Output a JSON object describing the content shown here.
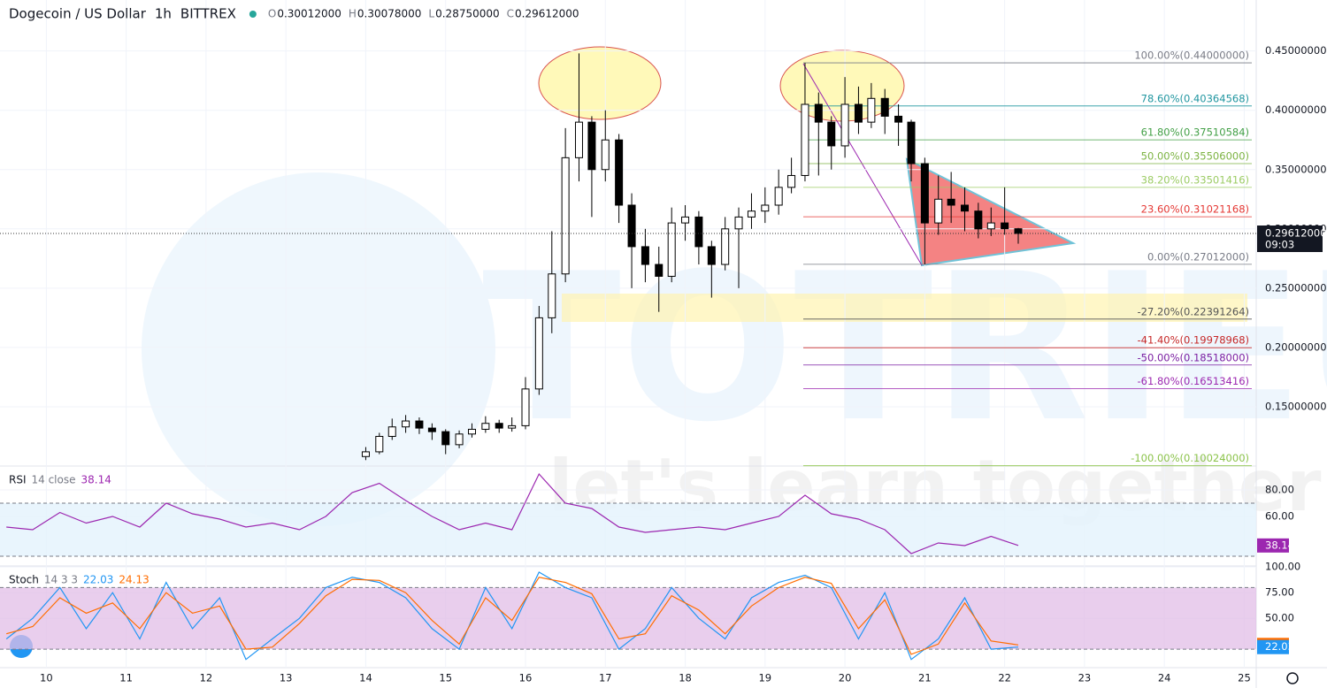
{
  "header": {
    "exchange": "BITTREX",
    "ohlc": [
      {
        "key": "O",
        "value": 0.30012,
        "label": "0.30012000"
      },
      {
        "key": "H",
        "value": 0.30078,
        "label": "0.30078000"
      },
      {
        "key": "L",
        "value": 0.2875,
        "label": "0.28750000"
      },
      {
        "key": "C",
        "value": 0.29612,
        "label": "0.29612000"
      }
    ]
  },
  "watermark": {
    "brand": "TOTRIEU",
    "slogan": "let's learn together"
  },
  "chart_data": [
    {
      "type": "candlestick",
      "title": "Dogecoin / US Dollar",
      "interval": "1h",
      "countdown": "09:03",
      "grid": true,
      "xlim": [
        9.42,
        25.15
      ],
      "xticks": [
        10,
        11,
        12,
        13,
        14,
        15,
        16,
        17,
        18,
        19,
        20,
        21,
        22,
        23,
        24,
        25
      ],
      "ylim": [
        0.1,
        0.493
      ],
      "yticks": [
        {
          "value": 0.45,
          "label": "0.45000000"
        },
        {
          "value": 0.4,
          "label": "0.40000000"
        },
        {
          "value": 0.35,
          "label": "0.35000000"
        },
        {
          "value": 0.3,
          "label": "0.30000000"
        },
        {
          "value": 0.25,
          "label": "0.25000000"
        },
        {
          "value": 0.2,
          "label": "0.20000000"
        },
        {
          "value": 0.15,
          "label": "0.15000000"
        }
      ],
      "x": [
        14,
        14.17,
        14.33,
        14.5,
        14.67,
        14.83,
        15,
        15.17,
        15.33,
        15.5,
        15.67,
        15.83,
        16,
        16.17,
        16.33,
        16.5,
        16.67,
        16.83,
        17,
        17.17,
        17.33,
        17.5,
        17.67,
        17.83,
        18,
        18.17,
        18.33,
        18.5,
        18.67,
        18.83,
        19,
        19.17,
        19.33,
        19.5,
        19.67,
        19.83,
        20,
        20.17,
        20.33,
        20.5,
        20.67,
        20.83,
        21,
        21.17,
        21.33,
        21.5,
        21.67,
        21.83,
        22,
        22.17
      ],
      "open": [
        0.108,
        0.112,
        0.125,
        0.133,
        0.138,
        0.132,
        0.129,
        0.118,
        0.127,
        0.131,
        0.136,
        0.132,
        0.134,
        0.165,
        0.225,
        0.262,
        0.36,
        0.39,
        0.35,
        0.375,
        0.32,
        0.285,
        0.27,
        0.26,
        0.305,
        0.31,
        0.285,
        0.27,
        0.3,
        0.31,
        0.315,
        0.32,
        0.335,
        0.345,
        0.405,
        0.39,
        0.37,
        0.405,
        0.39,
        0.41,
        0.395,
        0.39,
        0.355,
        0.305,
        0.325,
        0.32,
        0.315,
        0.3,
        0.305,
        0.30012
      ],
      "high": [
        0.116,
        0.128,
        0.14,
        0.143,
        0.141,
        0.136,
        0.131,
        0.13,
        0.136,
        0.142,
        0.139,
        0.141,
        0.175,
        0.235,
        0.298,
        0.385,
        0.448,
        0.395,
        0.4,
        0.38,
        0.33,
        0.3,
        0.285,
        0.318,
        0.32,
        0.315,
        0.29,
        0.31,
        0.318,
        0.33,
        0.335,
        0.35,
        0.36,
        0.44,
        0.415,
        0.395,
        0.428,
        0.42,
        0.423,
        0.418,
        0.405,
        0.392,
        0.36,
        0.345,
        0.348,
        0.335,
        0.322,
        0.318,
        0.335,
        0.30078
      ],
      "low": [
        0.105,
        0.11,
        0.122,
        0.128,
        0.127,
        0.122,
        0.11,
        0.115,
        0.124,
        0.128,
        0.128,
        0.129,
        0.131,
        0.16,
        0.212,
        0.255,
        0.34,
        0.31,
        0.34,
        0.305,
        0.25,
        0.255,
        0.23,
        0.255,
        0.29,
        0.27,
        0.242,
        0.265,
        0.25,
        0.3,
        0.305,
        0.312,
        0.33,
        0.34,
        0.345,
        0.35,
        0.36,
        0.38,
        0.385,
        0.38,
        0.37,
        0.34,
        0.27,
        0.295,
        0.305,
        0.298,
        0.292,
        0.294,
        0.295,
        0.2875
      ],
      "close": [
        0.112,
        0.125,
        0.133,
        0.138,
        0.132,
        0.129,
        0.118,
        0.127,
        0.131,
        0.136,
        0.132,
        0.134,
        0.165,
        0.225,
        0.262,
        0.36,
        0.39,
        0.35,
        0.375,
        0.32,
        0.285,
        0.27,
        0.26,
        0.305,
        0.31,
        0.285,
        0.27,
        0.3,
        0.31,
        0.315,
        0.32,
        0.335,
        0.345,
        0.405,
        0.39,
        0.37,
        0.405,
        0.39,
        0.41,
        0.395,
        0.39,
        0.355,
        0.305,
        0.325,
        0.32,
        0.315,
        0.3,
        0.305,
        0.30012,
        0.29612
      ],
      "up_color": "#ffffff",
      "down_color": "#000000",
      "fib_levels": [
        {
          "value": 0.44,
          "label": "100.00%(0.44000000)",
          "color": "#787b86"
        },
        {
          "value": 0.40364568,
          "label": "78.60%(0.40364568)",
          "color": "#2196a0"
        },
        {
          "value": 0.37510584,
          "label": "61.80%(0.37510584)",
          "color": "#43a047"
        },
        {
          "value": 0.35506,
          "label": "50.00%(0.35506000)",
          "color": "#7cb342"
        },
        {
          "value": 0.33501416,
          "label": "38.20%(0.33501416)",
          "color": "#9ccc65"
        },
        {
          "value": 0.31021168,
          "label": "23.60%(0.31021168)",
          "color": "#e53935"
        },
        {
          "value": 0.27012,
          "label": "0.00%(0.27012000)",
          "color": "#787b86"
        },
        {
          "value": 0.22391264,
          "label": "-27.20%(0.22391264)",
          "color": "#555555"
        },
        {
          "value": 0.19978968,
          "label": "-41.40%(0.19978968)",
          "color": "#c62828"
        },
        {
          "value": 0.18518,
          "label": "-50.00%(0.18518000)",
          "color": "#7b1fa2"
        },
        {
          "value": 0.16513416,
          "label": "-61.80%(0.16513416)",
          "color": "#9c27b0"
        },
        {
          "value": 0.10024,
          "label": "-100.00%(0.10024000)",
          "color": "#8bc34a"
        }
      ]
    },
    {
      "type": "line",
      "title": "RSI",
      "params": "14 close",
      "color": "#9c27b0",
      "ylim": [
        22.7,
        98
      ],
      "yticks": [
        {
          "value": 80,
          "label": "80.00"
        },
        {
          "value": 60,
          "label": "60.00"
        }
      ],
      "bands": [
        30,
        70
      ],
      "x": [
        9.5,
        9.83,
        10.17,
        10.5,
        10.83,
        11.17,
        11.5,
        11.83,
        12.17,
        12.5,
        12.83,
        13.17,
        13.5,
        13.83,
        14.17,
        14.5,
        14.83,
        15.17,
        15.5,
        15.83,
        16.17,
        16.5,
        16.83,
        17.17,
        17.5,
        17.83,
        18.17,
        18.5,
        18.83,
        19.17,
        19.5,
        19.83,
        20.17,
        20.5,
        20.83,
        21.17,
        21.5,
        21.83,
        22.17
      ],
      "values": [
        52,
        50,
        63,
        55,
        60,
        52,
        70,
        62,
        58,
        52,
        55,
        50,
        60,
        78,
        85,
        72,
        60,
        50,
        55,
        50,
        92,
        70,
        66,
        52,
        48,
        50,
        52,
        50,
        55,
        60,
        76,
        62,
        58,
        50,
        32,
        40,
        38,
        45,
        38.14
      ]
    },
    {
      "type": "line",
      "title": "Stoch",
      "params": "14 3 3",
      "ylim": [
        2,
        101
      ],
      "yticks": [
        {
          "value": 100,
          "label": "100.00"
        },
        {
          "value": 75,
          "label": "75.00"
        },
        {
          "value": 50,
          "label": "50.00"
        }
      ],
      "bands": [
        20,
        80
      ],
      "x": [
        9.5,
        9.83,
        10.17,
        10.5,
        10.83,
        11.17,
        11.5,
        11.83,
        12.17,
        12.5,
        12.83,
        13.17,
        13.5,
        13.83,
        14.17,
        14.5,
        14.83,
        15.17,
        15.5,
        15.83,
        16.17,
        16.5,
        16.83,
        17.17,
        17.5,
        17.83,
        18.17,
        18.5,
        18.83,
        19.17,
        19.5,
        19.83,
        20.17,
        20.5,
        20.83,
        21.17,
        21.5,
        21.83,
        22.17
      ],
      "series": [
        {
          "color": "#2196f3",
          "values": [
            30,
            50,
            80,
            40,
            75,
            30,
            85,
            40,
            70,
            10,
            30,
            50,
            80,
            90,
            85,
            70,
            40,
            20,
            80,
            40,
            95,
            80,
            70,
            20,
            40,
            80,
            50,
            30,
            70,
            85,
            92,
            80,
            30,
            75,
            10,
            30,
            70,
            20,
            22.03
          ]
        },
        {
          "color": "#ff6d00",
          "values": [
            35,
            42,
            70,
            55,
            65,
            40,
            75,
            55,
            62,
            20,
            22,
            45,
            72,
            88,
            87,
            75,
            48,
            25,
            70,
            48,
            90,
            85,
            74,
            30,
            35,
            72,
            58,
            35,
            62,
            80,
            90,
            84,
            40,
            68,
            15,
            25,
            65,
            28,
            24.13
          ]
        }
      ]
    }
  ]
}
